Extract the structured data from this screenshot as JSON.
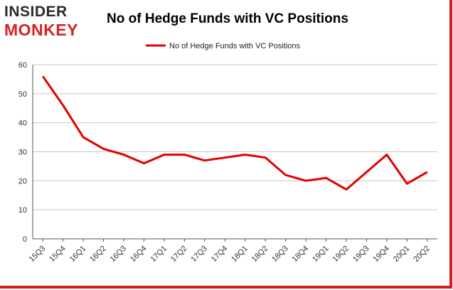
{
  "brand": {
    "line1": "INSIDER",
    "line2": "MONKEY"
  },
  "colors": {
    "series": "#e30000",
    "grid": "#c8c8c8",
    "frame": "#cf1f1f"
  },
  "chart_data": {
    "type": "line",
    "title": "No of Hedge Funds with VC Positions",
    "categories": [
      "15Q3",
      "15Q4",
      "16Q1",
      "16Q2",
      "16Q3",
      "16Q4",
      "17Q1",
      "17Q2",
      "17Q3",
      "17Q4",
      "18Q1",
      "18Q2",
      "18Q3",
      "18Q4",
      "19Q1",
      "19Q2",
      "19Q3",
      "19Q4",
      "20Q1",
      "20Q2"
    ],
    "series": [
      {
        "name": "No of Hedge Funds with VC Positions",
        "values": [
          56,
          46,
          35,
          31,
          29,
          26,
          29,
          29,
          27,
          28,
          29,
          28,
          22,
          20,
          21,
          17,
          23,
          29,
          19,
          23
        ]
      }
    ],
    "ylim": [
      0,
      60
    ],
    "yticks": [
      0,
      10,
      20,
      30,
      40,
      50,
      60
    ],
    "grid": true,
    "legend": "top-center",
    "xlabel": "",
    "ylabel": ""
  }
}
